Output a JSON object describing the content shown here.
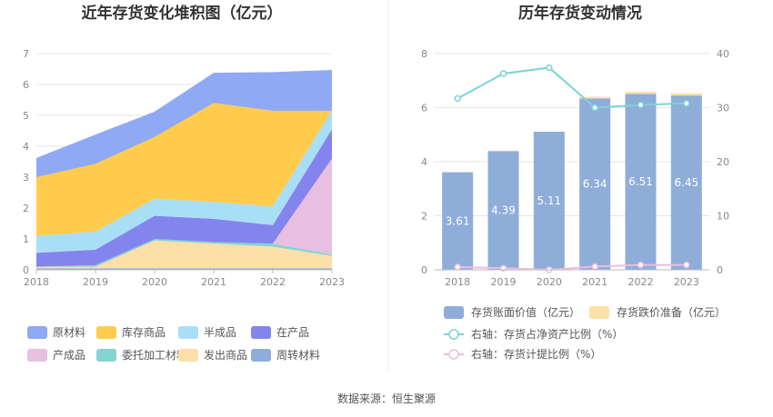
{
  "chart_data": [
    {
      "type": "area",
      "title": "近年存货变化堆积图（亿元）",
      "x": [
        "2018",
        "2019",
        "2020",
        "2021",
        "2022",
        "2023"
      ],
      "ylim": [
        0,
        7
      ],
      "yticks": [
        "0",
        "1",
        "2",
        "3",
        "4",
        "5",
        "6",
        "7"
      ],
      "legend_position": "bottom",
      "series": [
        {
          "name": "原材料",
          "color": "#8fa9f5",
          "values": [
            0.62,
            0.95,
            0.82,
            0.98,
            1.25,
            1.32
          ]
        },
        {
          "name": "库存商品",
          "color": "#ffcc4d",
          "values": [
            1.9,
            2.2,
            2.0,
            3.2,
            3.1,
            0.0
          ]
        },
        {
          "name": "半成品",
          "color": "#a8dff7",
          "values": [
            0.55,
            0.58,
            0.55,
            0.55,
            0.6,
            0.6
          ]
        },
        {
          "name": "在产品",
          "color": "#8484ee",
          "values": [
            0.45,
            0.5,
            0.75,
            0.75,
            0.6,
            0.95
          ]
        },
        {
          "name": "产成品",
          "color": "#e8bfe0",
          "values": [
            0.0,
            0.0,
            0.0,
            0.0,
            0.0,
            3.1
          ]
        },
        {
          "name": "委托加工材料",
          "color": "#85d3d3",
          "values": [
            0.0,
            0.05,
            0.05,
            0.05,
            0.1,
            0.05
          ]
        },
        {
          "name": "发出商品",
          "color": "#fde0a8",
          "values": [
            0.05,
            0.05,
            0.9,
            0.8,
            0.7,
            0.4
          ]
        },
        {
          "name": "周转材料",
          "color": "#8fadd9",
          "values": [
            0.05,
            0.05,
            0.05,
            0.05,
            0.05,
            0.05
          ]
        }
      ]
    },
    {
      "type": "bar",
      "title": "历年存货变动情况",
      "categories": [
        "2018",
        "2019",
        "2020",
        "2021",
        "2022",
        "2023"
      ],
      "ylim": [
        0,
        8
      ],
      "yticks": [
        "0",
        "2",
        "4",
        "6",
        "8"
      ],
      "y2lim": [
        0,
        40
      ],
      "y2ticks": [
        "0",
        "10",
        "20",
        "30",
        "40"
      ],
      "legend_position": "bottom",
      "series": [
        {
          "name": "存货账面价值（亿元）",
          "color": "#8fadd9",
          "kind": "bar",
          "values": [
            3.61,
            4.39,
            5.11,
            6.34,
            6.51,
            6.45
          ],
          "labels": [
            "3.61",
            "4.39",
            "5.11",
            "6.34",
            "6.51",
            "6.45"
          ]
        },
        {
          "name": "存货跌价准备（亿元）",
          "color": "#fde0a8",
          "kind": "bar",
          "values": [
            0.0,
            0.02,
            0.0,
            0.06,
            0.08,
            0.08
          ]
        },
        {
          "name": "右轴：存货占净资产比例（%）",
          "color": "#7ed3d3",
          "kind": "line",
          "values": [
            31.7,
            36.3,
            37.4,
            30.0,
            30.5,
            30.8
          ]
        },
        {
          "name": "右轴：存货计提比例（%）",
          "color": "#e8bfe0",
          "kind": "line",
          "values": [
            0.5,
            0.3,
            0.0,
            0.6,
            0.9,
            0.9
          ]
        }
      ]
    }
  ],
  "footer": {
    "source": "数据来源：恒生聚源"
  }
}
